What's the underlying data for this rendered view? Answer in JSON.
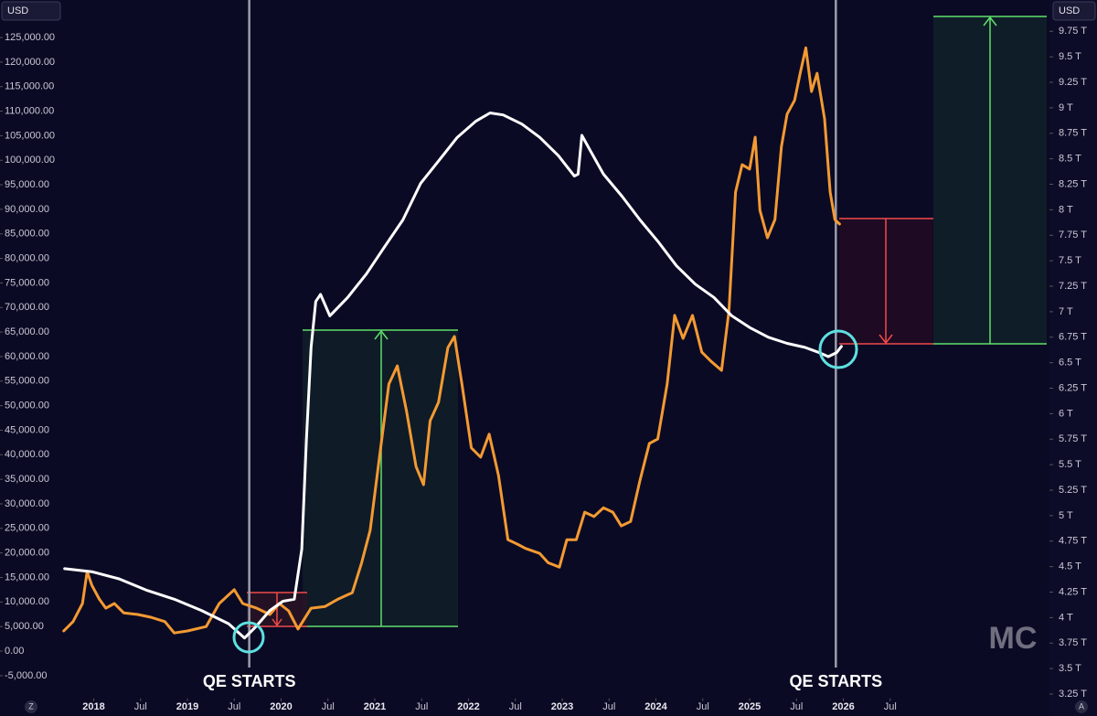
{
  "chart_data": {
    "type": "line",
    "y_unit": "USD",
    "y2_unit": "USD",
    "watermark": "MC",
    "corner_left": "Z",
    "corner_right": "A",
    "grid": false,
    "xlim": [
      2017.0,
      2028.2
    ],
    "ylim": [
      -10000,
      130000
    ],
    "y2lim": [
      3.19,
      9.93
    ],
    "xticks": [
      2018,
      {
        "value": 2018.5,
        "label": "Jul"
      },
      2019,
      {
        "value": 2019.5,
        "label": "Jul"
      },
      2020,
      {
        "value": 2020.5,
        "label": "Jul"
      },
      2021,
      {
        "value": 2021.5,
        "label": "Jul"
      },
      2022,
      {
        "value": 2022.5,
        "label": "Jul"
      },
      2023,
      {
        "value": 2023.5,
        "label": "Jul"
      },
      2024,
      {
        "value": 2024.5,
        "label": "Jul"
      },
      2025,
      {
        "value": 2025.5,
        "label": "Jul"
      },
      2026,
      {
        "value": 2026.5,
        "label": "Jul"
      }
    ],
    "yticks": [
      {
        "value": -5000,
        "label": "-5,000.00"
      },
      {
        "value": 0,
        "label": "0.00"
      },
      {
        "value": 5000,
        "label": "5,000.00"
      },
      {
        "value": 10000,
        "label": "10,000.00"
      },
      {
        "value": 15000,
        "label": "15,000.00"
      },
      {
        "value": 20000,
        "label": "20,000.00"
      },
      {
        "value": 25000,
        "label": "25,000.00"
      },
      {
        "value": 30000,
        "label": "30,000.00"
      },
      {
        "value": 35000,
        "label": "35,000.00"
      },
      {
        "value": 40000,
        "label": "40,000.00"
      },
      {
        "value": 45000,
        "label": "45,000.00"
      },
      {
        "value": 50000,
        "label": "50,000.00"
      },
      {
        "value": 55000,
        "label": "55,000.00"
      },
      {
        "value": 60000,
        "label": "60,000.00"
      },
      {
        "value": 65000,
        "label": "65,000.00"
      },
      {
        "value": 70000,
        "label": "70,000.00"
      },
      {
        "value": 75000,
        "label": "75,000.00"
      },
      {
        "value": 80000,
        "label": "80,000.00"
      },
      {
        "value": 85000,
        "label": "85,000.00"
      },
      {
        "value": 90000,
        "label": "90,000.00"
      },
      {
        "value": 95000,
        "label": "95,000.00"
      },
      {
        "value": 100000,
        "label": "100,000.00"
      },
      {
        "value": 105000,
        "label": "105,000.00"
      },
      {
        "value": 110000,
        "label": "110,000.00"
      },
      {
        "value": 115000,
        "label": "115,000.00"
      },
      {
        "value": 120000,
        "label": "120,000.00"
      },
      {
        "value": 125000,
        "label": "125,000.00"
      }
    ],
    "y2ticks": [
      {
        "value": 3.25,
        "label": "3.25 T"
      },
      {
        "value": 3.5,
        "label": "3.5 T"
      },
      {
        "value": 3.75,
        "label": "3.75 T"
      },
      {
        "value": 4,
        "label": "4 T"
      },
      {
        "value": 4.25,
        "label": "4.25 T"
      },
      {
        "value": 4.5,
        "label": "4.5 T"
      },
      {
        "value": 4.75,
        "label": "4.75 T"
      },
      {
        "value": 5,
        "label": "5 T"
      },
      {
        "value": 5.25,
        "label": "5.25 T"
      },
      {
        "value": 5.5,
        "label": "5.5 T"
      },
      {
        "value": 5.75,
        "label": "5.75 T"
      },
      {
        "value": 6,
        "label": "6 T"
      },
      {
        "value": 6.25,
        "label": "6.25 T"
      },
      {
        "value": 6.5,
        "label": "6.5 T"
      },
      {
        "value": 6.75,
        "label": "6.75 T"
      },
      {
        "value": 7,
        "label": "7 T"
      },
      {
        "value": 7.25,
        "label": "7.25 T"
      },
      {
        "value": 7.5,
        "label": "7.5 T"
      },
      {
        "value": 7.75,
        "label": "7.75 T"
      },
      {
        "value": 8,
        "label": "8 T"
      },
      {
        "value": 8.25,
        "label": "8.25 T"
      },
      {
        "value": 8.5,
        "label": "8.5 T"
      },
      {
        "value": 8.75,
        "label": "8.75 T"
      },
      {
        "value": 9,
        "label": "9 T"
      },
      {
        "value": 9.25,
        "label": "9.25 T"
      },
      {
        "value": 9.5,
        "label": "9.5 T"
      },
      {
        "value": 9.75,
        "label": "9.75 T"
      }
    ],
    "annotations": [
      {
        "text": "QE STARTS",
        "x": 2019.66
      },
      {
        "text": "QE STARTS",
        "x": 2025.92
      }
    ],
    "series": [
      {
        "color": "#f39a33",
        "axis": "y",
        "x": [
          2017.68,
          2017.78,
          2017.88,
          2017.93,
          2017.98,
          2018.06,
          2018.13,
          2018.22,
          2018.32,
          2018.47,
          2018.61,
          2018.76,
          2018.86,
          2019.0,
          2019.2,
          2019.34,
          2019.5,
          2019.59,
          2019.74,
          2019.88,
          2019.98,
          2020.08,
          2020.18,
          2020.32,
          2020.47,
          2020.61,
          2020.76,
          2020.86,
          2020.95,
          2021.05,
          2021.15,
          2021.24,
          2021.34,
          2021.44,
          2021.52,
          2021.59,
          2021.68,
          2021.78,
          2021.85,
          2021.93,
          2022.03,
          2022.13,
          2022.22,
          2022.32,
          2022.42,
          2022.52,
          2022.61,
          2022.76,
          2022.85,
          2022.97,
          2023.05,
          2023.15,
          2023.24,
          2023.34,
          2023.44,
          2023.54,
          2023.63,
          2023.73,
          2023.83,
          2023.93,
          2024.02,
          2024.12,
          2024.2,
          2024.29,
          2024.39,
          2024.49,
          2024.59,
          2024.7,
          2024.78,
          2024.85,
          2024.92,
          2025.0,
          2025.06,
          2025.11,
          2025.19,
          2025.27,
          2025.34,
          2025.4,
          2025.48,
          2025.54,
          2025.6,
          2025.66,
          2025.72,
          2025.8,
          2025.86,
          2025.91,
          2025.96
        ],
        "values": [
          4100,
          6000,
          9700,
          16200,
          13400,
          10600,
          8750,
          9700,
          7800,
          7450,
          6900,
          6000,
          3700,
          4100,
          5000,
          9700,
          12500,
          9700,
          8750,
          7450,
          9700,
          8200,
          4500,
          8750,
          9100,
          10600,
          11900,
          18000,
          24600,
          39500,
          54400,
          58100,
          48800,
          37600,
          33900,
          46900,
          50700,
          61800,
          64100,
          54400,
          41400,
          39500,
          44200,
          35800,
          22700,
          21800,
          20900,
          19900,
          18000,
          17100,
          22700,
          22700,
          28300,
          27400,
          29200,
          28300,
          25500,
          26400,
          34800,
          42300,
          43200,
          54400,
          68400,
          63700,
          68400,
          60900,
          59000,
          57200,
          69300,
          93500,
          99100,
          98200,
          104700,
          89800,
          84200,
          87900,
          102800,
          109400,
          112200,
          117700,
          122900,
          114000,
          117700,
          108400,
          93500,
          87900,
          87000
        ]
      },
      {
        "color": "#ffffff",
        "axis": "y2",
        "x": [
          2017.69,
          2017.98,
          2018.27,
          2018.56,
          2018.86,
          2019.15,
          2019.44,
          2019.61,
          2019.73,
          2019.88,
          2020.02,
          2020.14,
          2020.22,
          2020.27,
          2020.32,
          2020.37,
          2020.42,
          2020.52,
          2020.71,
          2020.91,
          2021.1,
          2021.3,
          2021.49,
          2021.69,
          2021.88,
          2022.08,
          2022.23,
          2022.37,
          2022.57,
          2022.76,
          2022.96,
          2023.13,
          2023.17,
          2023.21,
          2023.3,
          2023.44,
          2023.64,
          2023.83,
          2024.03,
          2024.22,
          2024.42,
          2024.62,
          2024.81,
          2025.01,
          2025.2,
          2025.4,
          2025.59,
          2025.74,
          2025.84,
          2025.93,
          2025.98
        ],
        "values": [
          4.48,
          4.45,
          4.38,
          4.27,
          4.18,
          4.07,
          3.94,
          3.8,
          3.91,
          4.07,
          4.16,
          4.18,
          4.67,
          5.75,
          6.65,
          7.1,
          7.17,
          6.96,
          7.14,
          7.37,
          7.63,
          7.9,
          8.26,
          8.49,
          8.71,
          8.87,
          8.95,
          8.93,
          8.84,
          8.71,
          8.53,
          8.33,
          8.35,
          8.73,
          8.58,
          8.35,
          8.13,
          7.9,
          7.68,
          7.45,
          7.27,
          7.14,
          6.96,
          6.84,
          6.75,
          6.69,
          6.65,
          6.6,
          6.56,
          6.6,
          6.66
        ]
      }
    ]
  }
}
